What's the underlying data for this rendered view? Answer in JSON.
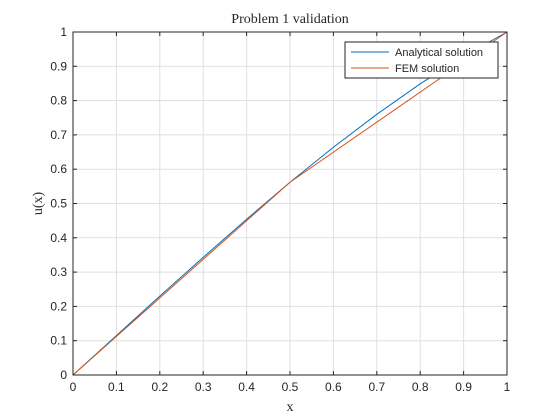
{
  "chart_data": {
    "type": "line",
    "title": "Problem 1 validation",
    "xlabel": "x",
    "ylabel": "u(x)",
    "xlim": [
      0,
      1
    ],
    "ylim": [
      0,
      1
    ],
    "xticks": [
      "0",
      "0.1",
      "0.2",
      "0.3",
      "0.4",
      "0.5",
      "0.6",
      "0.7",
      "0.8",
      "0.9",
      "1"
    ],
    "yticks": [
      "0",
      "0.1",
      "0.2",
      "0.3",
      "0.4",
      "0.5",
      "0.6",
      "0.7",
      "0.8",
      "0.9",
      "1"
    ],
    "grid": true,
    "legend_position": "top-right",
    "series": [
      {
        "name": "Analytical solution",
        "color": "#0072BD",
        "x": [
          0,
          0.1,
          0.2,
          0.3,
          0.4,
          0.5,
          0.6,
          0.7,
          0.8,
          0.9,
          1.0
        ],
        "y": [
          0,
          0.115,
          0.23,
          0.343,
          0.454,
          0.562,
          0.664,
          0.76,
          0.849,
          0.929,
          1.0
        ]
      },
      {
        "name": "FEM solution",
        "color": "#D95319",
        "x": [
          0,
          0.5,
          1.0
        ],
        "y": [
          0,
          0.562,
          1.0
        ]
      }
    ]
  }
}
